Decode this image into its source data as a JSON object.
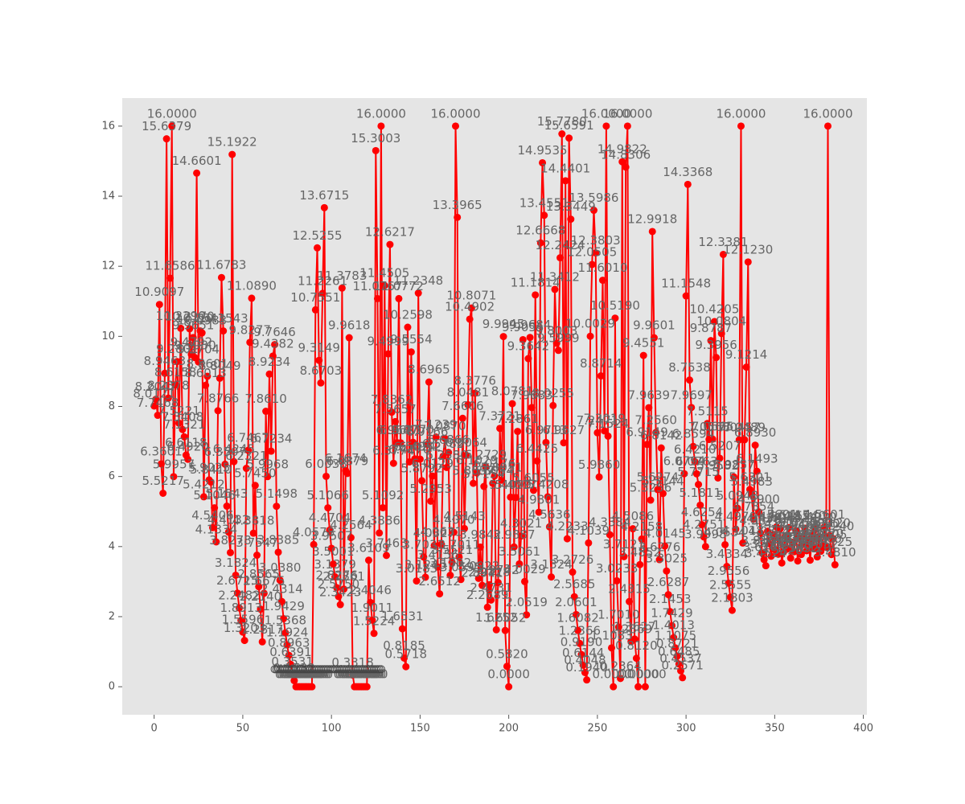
{
  "chart_data": {
    "type": "line",
    "xlim": [
      -18,
      402
    ],
    "ylim": [
      -0.8,
      16.8
    ],
    "xticks": [
      0,
      50,
      100,
      150,
      200,
      250,
      300,
      350,
      400
    ],
    "yticks": [
      0,
      2,
      4,
      6,
      8,
      10,
      12,
      14,
      16
    ],
    "grid": false,
    "series": [
      {
        "color": "#ff0000",
        "values": [
          8.0121,
          8.2047,
          7.7468,
          10.9097,
          6.3601,
          5.5217,
          8.9463,
          15.6379,
          8.2378,
          11.6586,
          16.0,
          5.9957,
          8.6158,
          9.2801,
          7.5221,
          10.229,
          7.3408,
          7.1321,
          6.6118,
          6.492,
          10.217,
          9.4792,
          9.9651,
          9.393,
          14.6601,
          9.2704,
          10.1543,
          10.0983,
          5.4212,
          8.6013,
          8.8601,
          5.9025,
          5.841,
          4.5406,
          5.1046,
          4.1334,
          7.8766,
          8.8049,
          11.6783,
          10.1543,
          6.3507,
          5.1543,
          4.4132,
          3.8278,
          15.1922,
          6.4245,
          3.1824,
          2.6715,
          2.2482,
          1.8913,
          1.5596,
          1.3203,
          6.2321,
          6.7467,
          9.8277,
          11.089,
          4.3818,
          5.745,
          3.7547,
          2.8565,
          2.214,
          1.2817,
          2.6675,
          7.861,
          5.9968,
          8.9234,
          6.7234,
          9.4382,
          9.7646,
          5.1498,
          3.8385,
          3.038,
          2.4314,
          1.9429,
          1.5368,
          1.1924,
          0.8963,
          0.6391,
          0.3531,
          0.1732,
          0,
          0,
          0,
          0,
          0,
          0,
          0,
          0,
          0,
          0,
          4.0578,
          10.7551,
          12.5255,
          9.3149,
          8.6703,
          11.2261,
          13.6715,
          6.0038,
          5.1066,
          4.4704,
          3.9507,
          3.5001,
          3.1379,
          2.8276,
          2.575,
          2.3423,
          11.3783,
          2.7861,
          6.1674,
          6.0879,
          9.9618,
          4.2564,
          0.3318,
          0,
          0,
          0,
          0,
          0,
          0,
          0,
          0,
          3.6109,
          2.4046,
          1.9011,
          1.5224,
          15.3003,
          11.0767,
          4.3886,
          16.0,
          5.1092,
          11.4505,
          3.7463,
          9.4999,
          12.6217,
          7.8362,
          6.3774,
          7.5657,
          6.9647,
          11.0772,
          6.9621,
          1.6531,
          0.8185,
          0.5718,
          10.2598,
          6.417,
          9.5554,
          6.977,
          6.5014,
          3.0183,
          11.2348,
          6.4952,
          5.8792,
          3.7031,
          3.1245,
          6.9166,
          8.6965,
          5.2953,
          6.0129,
          4.0327,
          7.1239,
          3.4156,
          2.6512,
          4.0631,
          6.5782,
          7.087,
          6.258,
          6.6866,
          3.1802,
          3.5521,
          4.407,
          16.0,
          13.3965,
          3.7011,
          3.0595,
          7.6606,
          4.5143,
          6.6064,
          8.0481,
          10.4902,
          10.8071,
          5.8057,
          8.3776,
          6.1029,
          3.0922,
          3.9842,
          2.8941,
          5.7154,
          6.2729,
          2.2689,
          2.9128,
          2.4731,
          5.8054,
          6.0176,
          1.6252,
          2.9742,
          7.3721,
          5.8951,
          9.9945,
          1.6052,
          0.582,
          0,
          5.4099,
          8.0781,
          3.9887,
          5.4017,
          7.2861,
          3.5061,
          4.3021,
          9.9055,
          3.0029,
          2.0519,
          9.3642,
          9.9684,
          7.9683,
          5.6055,
          11.1814,
          6.4425,
          4.9801,
          12.6668,
          14.9535,
          13.4551,
          6.9713,
          5.4208,
          4.5636,
          3.1324,
          8.0255,
          11.3412,
          9.8003,
          9.5999,
          12.2424,
          15.778,
          6.9627,
          14.4401,
          4.2233,
          15.6591,
          13.3449,
          3.2726,
          2.5685,
          2.0601,
          1.6082,
          1.2366,
          0.919,
          0.6144,
          0.4048,
          0.194,
          4.1039,
          10.0029,
          12.0505,
          13.5986,
          12.3803,
          7.2471,
          5.986,
          8.8714,
          11.601,
          7.3019,
          16.0,
          7.1524,
          4.3384,
          1.1083,
          0,
          10.519,
          3.0233,
          1.701,
          0.2364,
          14.9822,
          3.7121,
          14.8306,
          16.0,
          2.4315,
          1.2869,
          4.5086,
          1.3627,
          0.812,
          0,
          3.4852,
          4.2158,
          9.4551,
          0,
          6.9149,
          7.9639,
          5.3256,
          12.9918,
          9.9601,
          7.256,
          5.6274,
          3.6276,
          6.8142,
          5.5144,
          4.0145,
          3.3025,
          2.6287,
          2.1453,
          1.7429,
          1.4013,
          1.1075,
          0.8721,
          0.6485,
          0.4537,
          0.2571,
          6.0794,
          11.1548,
          14.3368,
          8.7538,
          7.9697,
          6.8594,
          6.421,
          6.0763,
          5.7715,
          5.1811,
          4.6254,
          4.2751,
          3.9998,
          7.5115,
          7.0568,
          9.8787,
          7.0665,
          10.4205,
          9.3956,
          5.9582,
          6.5207,
          10.0804,
          12.3381,
          4.0534,
          3.4334,
          2.9556,
          2.5555,
          2.1803,
          5.9857,
          4.497,
          5.0948,
          7.0457,
          16.0,
          4.1018,
          7.0489,
          9.1214,
          12.123,
          5.6301,
          5.4983,
          4.7854,
          6.893,
          6.1493,
          4.99,
          4.3876,
          3.8107,
          3.626,
          3.4524,
          4.4381,
          4.0822,
          3.7234,
          4.3391,
          3.911,
          4.5601,
          3.7821,
          4.5028,
          3.532,
          3.8471,
          4.3101,
          3.9275,
          4.5415,
          3.671,
          4.122,
          3.8533,
          4.4512,
          3.5892,
          4.2405,
          3.7744,
          4.0631,
          4.524,
          3.881,
          4.1983,
          3.612,
          4.3302,
          3.9517,
          4.492,
          3.7052,
          4.289,
          3.866,
          4.022,
          4.5601,
          3.9805,
          16.0,
          4.312,
          3.7725,
          4.224,
          3.481
        ],
        "value_labels": [
          "8.0121",
          "8.2047",
          "7.7468",
          "10.9097",
          "6.3601",
          "5.5217",
          "8.9463",
          "15.6379",
          "8.2378",
          "11.6586",
          "16.0000",
          "5.9957",
          "8.6158",
          "9.2801",
          "7.5221",
          "10.2290",
          "7.3408",
          "7.1321",
          "6.6118",
          "6.4920",
          "10.2170",
          "9.4792",
          "9.9651",
          "9.3930",
          "14.6601",
          "9.2704",
          "10.1543",
          "10.0983",
          "5.4212",
          "8.6013",
          "8.8601",
          "5.9025",
          "5.8410",
          "4.5406",
          "5.1046",
          "4.1334",
          "7.8766",
          "8.8049",
          "11.6783",
          "10.1543",
          "6.3507",
          "5.1543",
          "4.4132",
          "3.8278",
          "15.1922",
          "6.4245",
          "3.1824",
          "2.6715",
          "2.2482",
          "1.8913",
          "1.5596",
          "1.3203",
          "6.2321",
          "6.7467",
          "9.8277",
          "11.0890",
          "4.3818",
          "5.7450",
          "3.7547",
          "2.8565",
          "2.2140",
          "1.2817",
          "2.6675",
          "7.8610",
          "5.9968",
          "8.9234",
          "6.7234",
          "9.4382",
          "9.7646",
          "5.1498",
          "3.8385",
          "3.0380",
          "2.4314",
          "1.9429",
          "1.5368",
          "1.1924",
          "0.8963",
          "0.6391",
          "0.3531",
          "0.1732",
          "0.0000",
          "0.0000",
          "0.0000",
          "0.0000",
          "0.0000",
          "0.0000",
          "0.0000",
          "0.0000",
          "0.0000",
          "0.0000",
          "4.0578",
          "10.7551",
          "12.5255",
          "9.3149",
          "8.6703",
          "11.2261",
          "13.6715",
          "6.0038",
          "5.1066",
          "4.4704",
          "3.9507",
          "3.5001",
          "3.1379",
          "2.8276",
          "2.5750",
          "2.3423",
          "11.3783",
          "2.7861",
          "6.1674",
          "6.0879",
          "9.9618",
          "4.2564",
          "0.3318",
          "0.0000",
          "0.0000",
          "0.0000",
          "0.0000",
          "0.0000",
          "0.0000",
          "0.0000",
          "0.0000",
          "3.6109",
          "2.4046",
          "1.9011",
          "1.5224",
          "15.3003",
          "11.0767",
          "4.3886",
          "16.0000",
          "5.1092",
          "11.4505",
          "3.7463",
          "9.4999",
          "12.6217",
          "7.8362",
          "6.3774",
          "7.5657",
          "6.9647",
          "11.0772",
          "6.9621",
          "1.6531",
          "0.8185",
          "0.5718",
          "10.2598",
          "6.4170",
          "9.5554",
          "6.9770",
          "6.5014",
          "3.0183",
          "11.2348",
          "6.4952",
          "5.8792",
          "3.7031",
          "3.1245",
          "6.9166",
          "8.6965",
          "5.2953",
          "6.0129",
          "4.0327",
          "7.1239",
          "3.4156",
          "2.6512",
          "4.0631",
          "6.5782",
          "7.0870",
          "6.2580",
          "6.6866",
          "3.1802",
          "3.5521",
          "4.4070",
          "16.0000",
          "13.3965",
          "3.7011",
          "3.0595",
          "7.6606",
          "4.5143",
          "6.6064",
          "8.0481",
          "10.4902",
          "10.8071",
          "5.8057",
          "8.3776",
          "6.1029",
          "3.0922",
          "3.9842",
          "2.8941",
          "5.7154",
          "6.2729",
          "2.2689",
          "2.9128",
          "2.4731",
          "5.8054",
          "6.0176",
          "1.6252",
          "2.9742",
          "7.3721",
          "5.8951",
          "9.9945",
          "1.6052",
          "0.5820",
          "0.0000",
          "5.4099",
          "8.0781",
          "3.9887",
          "5.4017",
          "7.2861",
          "3.5061",
          "4.3021",
          "9.9055",
          "3.0029",
          "2.0519",
          "9.3642",
          "9.9684",
          "7.9683",
          "5.6055",
          "11.1814",
          "6.4425",
          "4.9801",
          "12.6668",
          "14.9535",
          "13.4551",
          "6.9713",
          "5.4208",
          "4.5636",
          "3.1324",
          "8.0255",
          "11.3412",
          "9.8003",
          "9.5999",
          "12.2424",
          "15.7780",
          "6.9627",
          "14.4401",
          "4.2233",
          "15.6591",
          "13.3449",
          "3.2726",
          "2.5685",
          "2.0601",
          "1.6082",
          "1.2366",
          "0.9190",
          "0.6144",
          "0.4048",
          "0.1940",
          "4.1039",
          "10.0029",
          "12.0505",
          "13.5986",
          "12.3803",
          "7.2471",
          "5.9860",
          "8.8714",
          "11.6010",
          "7.3019",
          "16.0000",
          "7.1524",
          "4.3384",
          "1.1083",
          "0.0000",
          "10.5190",
          "3.0233",
          "1.7010",
          "0.2364",
          "14.9822",
          "3.7121",
          "14.8306",
          "16.0000",
          "2.4315",
          "1.2869",
          "4.5086",
          "1.3627",
          "0.8120",
          "0.0000",
          "3.4852",
          "4.2158",
          "9.4551",
          "0.0000",
          "6.9149",
          "7.9639",
          "5.3256",
          "12.9918",
          "9.9601",
          "7.2560",
          "5.6274",
          "3.6276",
          "6.8142",
          "5.5144",
          "4.0145",
          "3.3025",
          "2.6287",
          "2.1453",
          "1.7429",
          "1.4013",
          "1.1075",
          "0.8721",
          "0.6485",
          "0.4537",
          "0.2571",
          "6.0794",
          "11.1548",
          "14.3368",
          "8.7538",
          "7.9697",
          "6.8594",
          "6.4210",
          "6.0763",
          "5.7715",
          "5.1811",
          "4.6254",
          "4.2751",
          "3.9998",
          "7.5115",
          "7.0568",
          "9.8787",
          "7.0665",
          "10.4205",
          "9.3956",
          "5.9582",
          "6.5207",
          "10.0804",
          "12.3381",
          "4.0534",
          "3.4334",
          "2.9556",
          "2.5555",
          "2.1803",
          "5.9857",
          "4.4970",
          "5.0948",
          "7.0457",
          "16.0000",
          "4.1018",
          "7.0489",
          "9.1214",
          "12.1230",
          "5.6301",
          "5.4983",
          "4.7854",
          "6.8930",
          "6.1493",
          "4.9900",
          "4.3876",
          "3.8107",
          "3.6260",
          "3.4524",
          "4.4381",
          "4.0822",
          "3.7234",
          "4.3391",
          "3.9110",
          "4.5601",
          "3.7821",
          "4.5028",
          "3.5320",
          "3.8471",
          "4.3101",
          "3.9275",
          "4.5415",
          "3.6710",
          "4.1220",
          "3.8533",
          "4.4512",
          "3.5892",
          "4.2405",
          "3.7744",
          "4.0631",
          "4.5240",
          "3.8810",
          "4.1983",
          "3.6120",
          "4.3302",
          "3.9517",
          "4.4920",
          "3.7052",
          "4.2890",
          "3.8660",
          "4.0220",
          "4.5601",
          "3.9805",
          "16.0000",
          "4.3120",
          "3.7725",
          "4.2240",
          "3.4810"
        ]
      },
      {
        "color": "#444444",
        "x": [
          68,
          69,
          70,
          71,
          72,
          73,
          74,
          75,
          76,
          77,
          78,
          79,
          80,
          81,
          82,
          83,
          84,
          85,
          86,
          87,
          88,
          89,
          90,
          91,
          92,
          93,
          94,
          95,
          96,
          97,
          98,
          99,
          100,
          101,
          102,
          103,
          104,
          105,
          106,
          107,
          108,
          109,
          110,
          111,
          112,
          113,
          114,
          115,
          116,
          117,
          118,
          119,
          120,
          121,
          122,
          123,
          124,
          125,
          126,
          127,
          128
        ],
        "values": [
          0.5,
          0.5,
          0.5,
          0.5,
          0.5,
          0.5,
          0.5,
          0.5,
          0.5,
          0.5,
          0.5,
          0.5,
          0.5,
          0.5,
          0.5,
          0.5,
          0.5,
          0.5,
          0.5,
          0.5,
          0.5,
          0.5,
          0.5,
          0.5,
          0.5,
          0.5,
          0.5,
          0.5,
          0.5,
          0.5,
          0.5,
          0.5,
          0.5,
          0.5,
          0.5,
          0.5,
          0.5,
          0.5,
          0.5,
          0.5,
          0.5,
          0.5,
          0.5,
          0.5,
          0.5,
          0.5,
          0.5,
          0.5,
          0.5,
          0.5,
          0.5,
          0.5,
          0.5,
          0.5,
          0.5,
          0.5,
          0.5,
          0.5,
          0.5,
          0.5,
          0.5
        ]
      }
    ]
  }
}
